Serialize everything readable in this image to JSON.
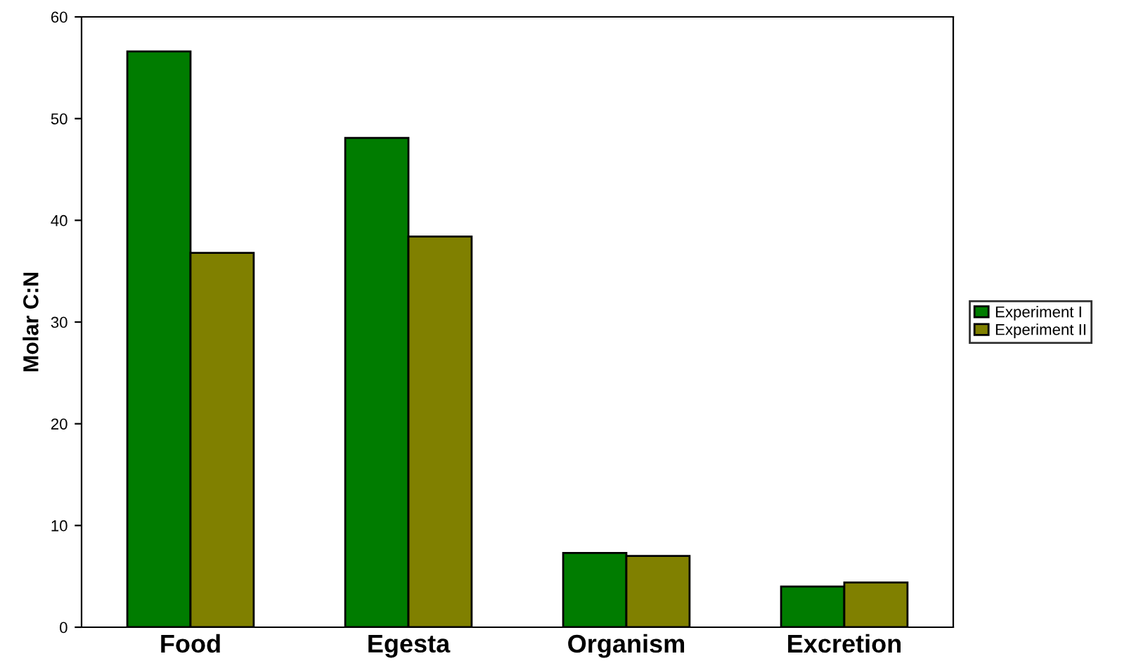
{
  "chart_data": {
    "type": "bar",
    "ylabel": "Molar C:N",
    "categories": [
      "Food",
      "Egesta",
      "Organism",
      "Excretion"
    ],
    "series": [
      {
        "name": "Experiment I",
        "color": "#007c00",
        "values": [
          56.6,
          48.1,
          7.3,
          4.0
        ]
      },
      {
        "name": "Experiment II",
        "color": "#808000",
        "values": [
          36.8,
          38.4,
          7.0,
          4.4
        ]
      }
    ],
    "ylim": [
      0,
      60
    ],
    "yticks": [
      0,
      10,
      20,
      30,
      40,
      50,
      60
    ],
    "grid": false,
    "legend": "right"
  }
}
